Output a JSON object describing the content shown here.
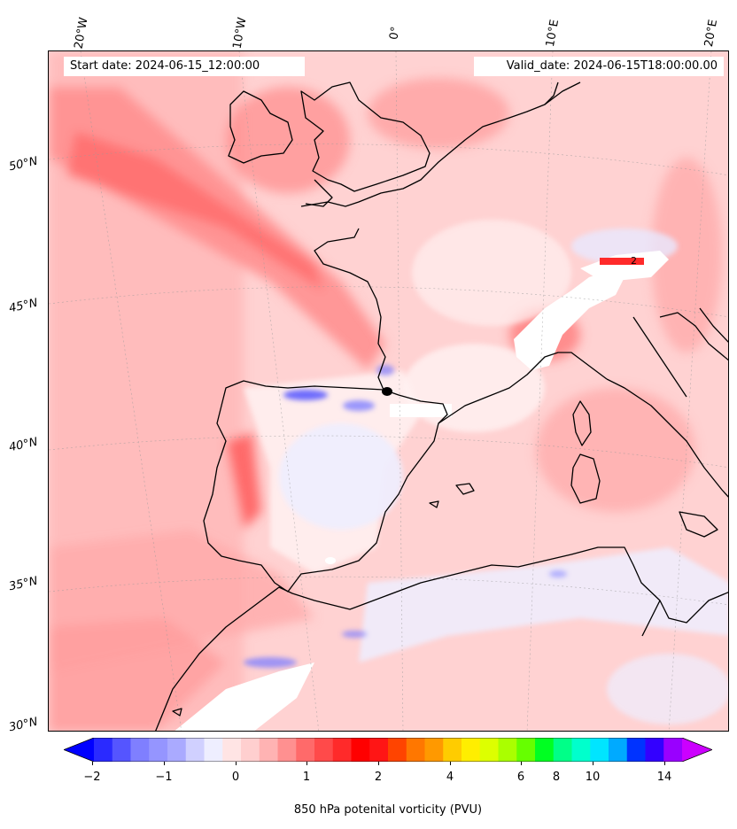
{
  "header": {
    "start_date": "Start date: 2024-06-15_12:00:00",
    "valid_date": "Valid_date: 2024-06-15T18:00:00.00"
  },
  "map": {
    "longitude_labels": [
      "20°W",
      "10°W",
      "0°",
      "10°E",
      "20°E"
    ],
    "latitude_labels": [
      "50°N",
      "45°N",
      "40°N",
      "35°N",
      "30°N"
    ],
    "contour_label": "2",
    "coastline_color": "#000000"
  },
  "colorbar": {
    "label": "850 hPa potenital vorticity (PVU)",
    "tick_labels": [
      "−2",
      "−1",
      "0",
      "1",
      "2",
      "4",
      "6",
      "8",
      "10",
      "14"
    ],
    "colors": [
      "#0000ff",
      "#2a2aff",
      "#5555ff",
      "#7f7fff",
      "#9595ff",
      "#aaaaff",
      "#d0d0ff",
      "#eeeeff",
      "#ffe4e4",
      "#ffcfcf",
      "#ffb3b3",
      "#ff9090",
      "#ff6a6a",
      "#ff4a4a",
      "#ff2a2a",
      "#ff0000",
      "#ff1515",
      "#ff4400",
      "#ff7700",
      "#ff9900",
      "#ffcc00",
      "#ffee00",
      "#ddff00",
      "#aaff00",
      "#66ff00",
      "#00ff22",
      "#00ff88",
      "#00ffcc",
      "#00e5ff",
      "#00aaff",
      "#0033ff",
      "#3300ff",
      "#9900ff",
      "#cc00ff"
    ]
  }
}
